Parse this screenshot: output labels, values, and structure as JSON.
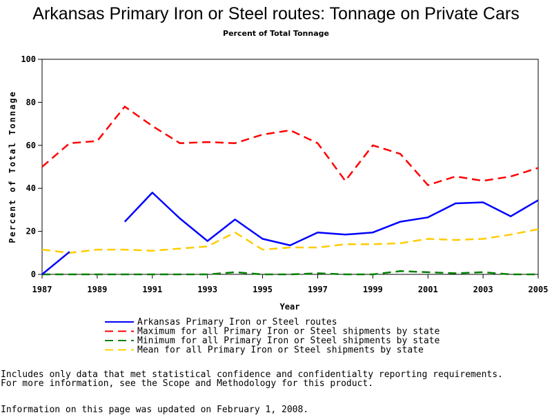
{
  "chart_data": {
    "type": "line",
    "title": "Arkansas Primary Iron or Steel routes: Tonnage on Private Cars",
    "subtitle": "Percent of Total Tonnage",
    "xlabel": "Year",
    "ylabel": "Percent of Total Tonnage",
    "xlim": [
      1987,
      2005
    ],
    "ylim": [
      0,
      100
    ],
    "xticks": [
      "1987",
      "1989",
      "1991",
      "1993",
      "1995",
      "1997",
      "1999",
      "2001",
      "2003",
      "2005"
    ],
    "yticks": [
      "0",
      "20",
      "40",
      "60",
      "80",
      "100"
    ],
    "grid": false,
    "legend": "bottom",
    "series": [
      {
        "name": "Arkansas Primary Iron or Steel routes",
        "color": "#0000ff",
        "style": "solid",
        "x": [
          1987,
          1988,
          1990,
          1991,
          1992,
          1993,
          1994,
          1995,
          1996,
          1997,
          1998,
          1999,
          2000,
          2001,
          2002,
          2003,
          2004,
          2005
        ],
        "y": [
          0,
          10.5,
          24.5,
          38,
          26,
          15.5,
          25.5,
          16.5,
          13.5,
          19.5,
          18.5,
          19.5,
          24.5,
          26.5,
          33,
          33.5,
          27,
          34.5
        ]
      },
      {
        "name": "Maximum for all Primary Iron or Steel shipments by state",
        "color": "#ff0000",
        "style": "dashed",
        "x": [
          1987,
          1988,
          1989,
          1990,
          1991,
          1992,
          1993,
          1994,
          1995,
          1996,
          1997,
          1998,
          1999,
          2000,
          2001,
          2002,
          2003,
          2004,
          2005
        ],
        "y": [
          50,
          61,
          62,
          78,
          69,
          61,
          61.5,
          61,
          65,
          67,
          61,
          43.5,
          60,
          56,
          41.5,
          45.5,
          43.5,
          45.5,
          49.5
        ]
      },
      {
        "name": "Minimum for all Primary Iron or Steel shipments by state",
        "color": "#008000",
        "style": "dashed",
        "x": [
          1987,
          1988,
          1989,
          1990,
          1991,
          1992,
          1993,
          1994,
          1995,
          1996,
          1997,
          1998,
          1999,
          2000,
          2001,
          2002,
          2003,
          2004,
          2005
        ],
        "y": [
          0,
          0,
          0,
          0,
          0,
          0,
          0,
          1,
          0,
          0,
          0.5,
          0,
          0,
          1.5,
          1,
          0.5,
          1,
          0,
          0
        ]
      },
      {
        "name": "Mean for all Primary Iron or Steel shipments by state",
        "color": "#ffcc00",
        "style": "dashed",
        "x": [
          1987,
          1988,
          1989,
          1990,
          1991,
          1992,
          1993,
          1994,
          1995,
          1996,
          1997,
          1998,
          1999,
          2000,
          2001,
          2002,
          2003,
          2004,
          2005
        ],
        "y": [
          11.5,
          10,
          11.5,
          11.5,
          11,
          12,
          13,
          19.5,
          11.5,
          12.5,
          12.5,
          14,
          14,
          14.5,
          16.5,
          16,
          16.5,
          18.5,
          21
        ]
      }
    ]
  },
  "notes": {
    "line1": "Includes only data that met statistical confidence and confidentialty reporting requirements.",
    "line2": "For more information, see the Scope and Methodology for this product.",
    "line3": "Information on this page was updated on February 1, 2008."
  }
}
